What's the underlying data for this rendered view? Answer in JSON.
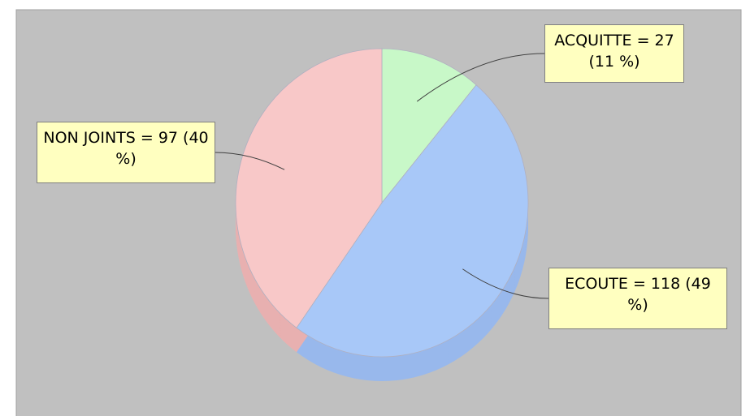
{
  "chart_data": {
    "type": "pie",
    "values": [
      27,
      118,
      97
    ],
    "value_labels": [
      "ACQUITTE = 27 (11 %)",
      "ECOUTE = 118 (49 %)",
      "NON JOINTS = 97 (40 %)"
    ],
    "colors": [
      "#c8f8c8",
      "#a8c8f8",
      "#f8c8c8"
    ],
    "side_colors": [
      "#a8e0a8",
      "#98b8ec",
      "#e8b0b0"
    ]
  }
}
